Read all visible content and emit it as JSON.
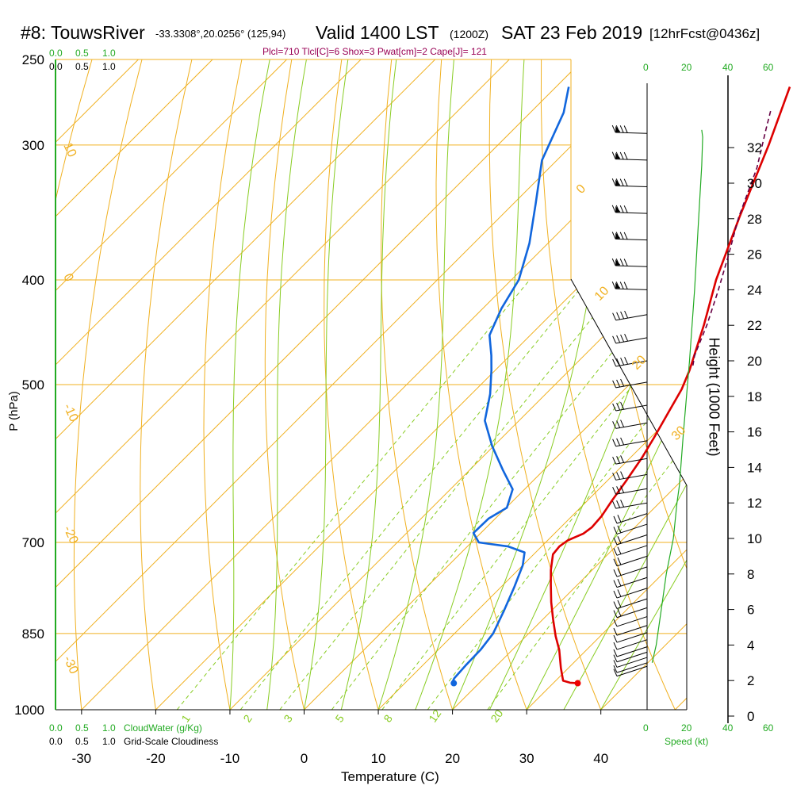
{
  "header": {
    "station": "#8: TouwsRiver",
    "coords": "-33.3308°,20.0256° (125,94)",
    "valid": "Valid 1400 LST",
    "zulu": "(1200Z)",
    "date": "SAT 23 Feb 2019",
    "forecast": "[12hrFcst@0436z]",
    "indices": "Plcl=710 Tlcl[C]=6 Shox=3 Pwat[cm]=2 Cape[J]= 121"
  },
  "scales": {
    "cloudwater_ticks": [
      "0.0",
      "0.5",
      "1.0"
    ],
    "cloudiness_ticks": [
      "0.0",
      "0.5",
      "1.0"
    ],
    "cloudwater_label": "CloudWater (g/Kg)",
    "cloudiness_label": "Grid-Scale Cloudiness",
    "speed_ticks": [
      "0",
      "20",
      "40",
      "60"
    ],
    "speed_label": "Speed (kt)"
  },
  "chart_data": {
    "type": "line",
    "title": "",
    "xlabel": "Temperature (C)",
    "ylabel": "P (hPa)",
    "y2label": "Height (1000 Feet)",
    "x_ticks": [
      -30,
      -20,
      -10,
      0,
      10,
      20,
      30,
      40
    ],
    "pressure_ticks": [
      250,
      300,
      400,
      500,
      700,
      850,
      1000
    ],
    "height_ticks": [
      0,
      2,
      4,
      6,
      8,
      10,
      12,
      14,
      16,
      18,
      20,
      22,
      24,
      26,
      28,
      30,
      32
    ],
    "dry_adiabat_labels": [
      "10",
      "0",
      "-10",
      "-20",
      "-30",
      "0",
      "10",
      "20",
      "30"
    ],
    "mixing_ratio_labels": [
      "1",
      "2",
      "3",
      "5",
      "8",
      "12",
      "20"
    ],
    "series": [
      {
        "name": "temperature",
        "color": "#dd0000",
        "points": [
          [
            33.3,
            945
          ],
          [
            32.2,
            944
          ],
          [
            31.0,
            940
          ],
          [
            29.0,
            915
          ],
          [
            26.3,
            880
          ],
          [
            24.0,
            855
          ],
          [
            21.4,
            825
          ],
          [
            18.8,
            795
          ],
          [
            16.4,
            766
          ],
          [
            14.4,
            742
          ],
          [
            12.6,
            718
          ],
          [
            12.4,
            706
          ],
          [
            12.7,
            697
          ],
          [
            13.3,
            692
          ],
          [
            13.9,
            687
          ],
          [
            14.2,
            678
          ],
          [
            14.0,
            662
          ],
          [
            13.3,
            640
          ],
          [
            12.6,
            615
          ],
          [
            11.6,
            585
          ],
          [
            10.5,
            560
          ],
          [
            9.0,
            530
          ],
          [
            7.7,
            505
          ],
          [
            6.2,
            485
          ],
          [
            2.0,
            440
          ],
          [
            -2.4,
            400
          ],
          [
            -7.7,
            350
          ],
          [
            -13.5,
            300
          ],
          [
            -18.5,
            265
          ]
        ]
      },
      {
        "name": "dewpoint",
        "color": "#1166dd",
        "points": [
          [
            16.6,
            945
          ],
          [
            16.3,
            944
          ],
          [
            16.0,
            935
          ],
          [
            15.8,
            910
          ],
          [
            15.7,
            880
          ],
          [
            15.2,
            850
          ],
          [
            13.6,
            810
          ],
          [
            11.8,
            770
          ],
          [
            10.0,
            735
          ],
          [
            8.5,
            715
          ],
          [
            5.5,
            706
          ],
          [
            1.0,
            700
          ],
          [
            -1.0,
            686
          ],
          [
            -0.9,
            665
          ],
          [
            0.1,
            650
          ],
          [
            -1.6,
            625
          ],
          [
            -5.5,
            600
          ],
          [
            -10.2,
            570
          ],
          [
            -14.6,
            540
          ],
          [
            -17.5,
            510
          ],
          [
            -20.5,
            485
          ],
          [
            -22.5,
            470
          ],
          [
            -25.5,
            450
          ],
          [
            -27.5,
            425
          ],
          [
            -29.0,
            400
          ],
          [
            -32.5,
            370
          ],
          [
            -37.0,
            340
          ],
          [
            -42.0,
            310
          ],
          [
            -45.5,
            280
          ],
          [
            -48.3,
            265
          ]
        ]
      },
      {
        "name": "parcel",
        "color": "#660044",
        "dashed": true,
        "points": [
          [
            6.0,
            480
          ],
          [
            4.9,
            470
          ],
          [
            2.4,
            440
          ],
          [
            -0.6,
            410
          ],
          [
            -4.0,
            380
          ],
          [
            -7.8,
            350
          ],
          [
            -12.0,
            315
          ],
          [
            -16.0,
            290
          ],
          [
            -18.0,
            278
          ]
        ]
      },
      {
        "name": "cloudiness",
        "color": "#22aa22",
        "points": [
          [
            0,
            250
          ],
          [
            0,
            1000
          ]
        ]
      }
    ],
    "surface_temperature": [
      33.3,
      945
    ],
    "surface_dewpoint": [
      16.6,
      945
    ],
    "wind_barb_heights_kft": [
      2.8,
      3.0,
      3.3,
      3.6,
      3.9,
      4.3,
      4.7,
      5.1,
      5.6,
      6.1,
      6.6,
      7.2,
      7.8,
      8.4,
      9.0,
      9.6,
      10.2,
      10.8,
      11.4,
      12.0,
      12.8,
      13.6,
      14.5,
      15.5,
      16.5,
      17.5,
      18.8,
      20.0,
      21.3,
      22.6,
      24.0,
      25.3,
      26.8,
      28.3,
      29.8,
      31.3,
      32.8
    ],
    "wind_speed_profile_kt": [
      [
        3,
        2.5
      ],
      [
        4,
        4.5
      ],
      [
        6,
        7.0
      ],
      [
        8,
        9.5
      ],
      [
        10,
        13.0
      ],
      [
        12,
        14.8
      ],
      [
        13,
        16.0
      ],
      [
        16,
        18.0
      ],
      [
        20,
        21.0
      ],
      [
        24,
        23.5
      ],
      [
        28,
        25.5
      ],
      [
        31,
        27.0
      ],
      [
        32.6,
        27.5
      ],
      [
        33,
        27.0
      ]
    ]
  }
}
